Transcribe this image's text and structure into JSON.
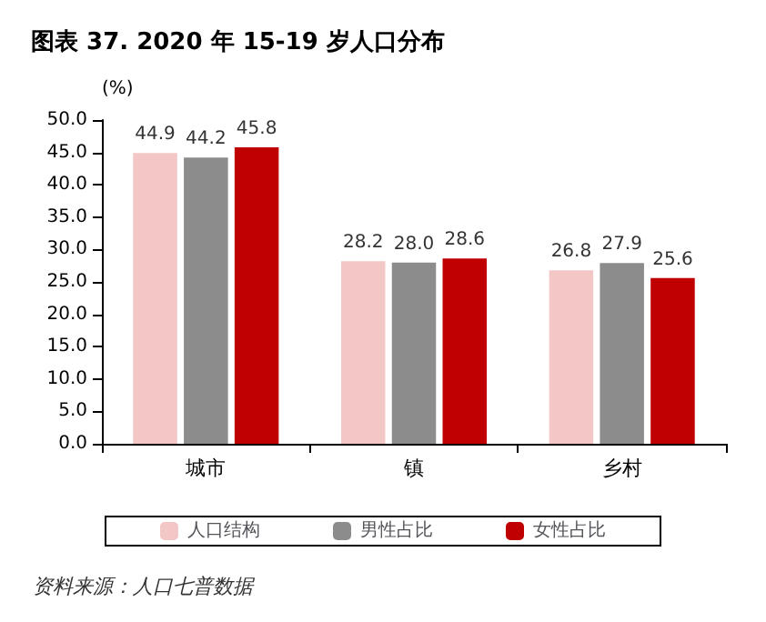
{
  "chart_data": {
    "type": "bar",
    "title": "图表 37. 2020 年 15-19 岁人口分布",
    "ylabel": "(%)",
    "categories": [
      "城市",
      "镇",
      "乡村"
    ],
    "series": [
      {
        "name": "人口结构",
        "color": "#f4c7c7",
        "values": [
          44.9,
          28.2,
          26.8
        ],
        "value_labels": [
          "44.9",
          "28.2",
          "26.8"
        ]
      },
      {
        "name": "男性占比",
        "color": "#8c8c8c",
        "values": [
          44.2,
          28.0,
          27.9
        ],
        "value_labels": [
          "44.2",
          "28.0",
          "27.9"
        ]
      },
      {
        "name": "女性占比",
        "color": "#c00000",
        "values": [
          45.8,
          28.6,
          25.6
        ],
        "value_labels": [
          "45.8",
          "28.6",
          "25.6"
        ]
      }
    ],
    "ylim": [
      0,
      50
    ],
    "yticks": [
      {
        "value": 0,
        "label": "0.0"
      },
      {
        "value": 5,
        "label": "5.0"
      },
      {
        "value": 10,
        "label": "10.0"
      },
      {
        "value": 15,
        "label": "15.0"
      },
      {
        "value": 20,
        "label": "20.0"
      },
      {
        "value": 25,
        "label": "25.0"
      },
      {
        "value": 30,
        "label": "30.0"
      },
      {
        "value": 35,
        "label": "35.0"
      },
      {
        "value": 40,
        "label": "40.0"
      },
      {
        "value": 45,
        "label": "45.0"
      },
      {
        "value": 50,
        "label": "50.0"
      }
    ],
    "grid": false,
    "legend": "bottom",
    "annotations": [
      "资料来源：人口七普数据"
    ]
  }
}
